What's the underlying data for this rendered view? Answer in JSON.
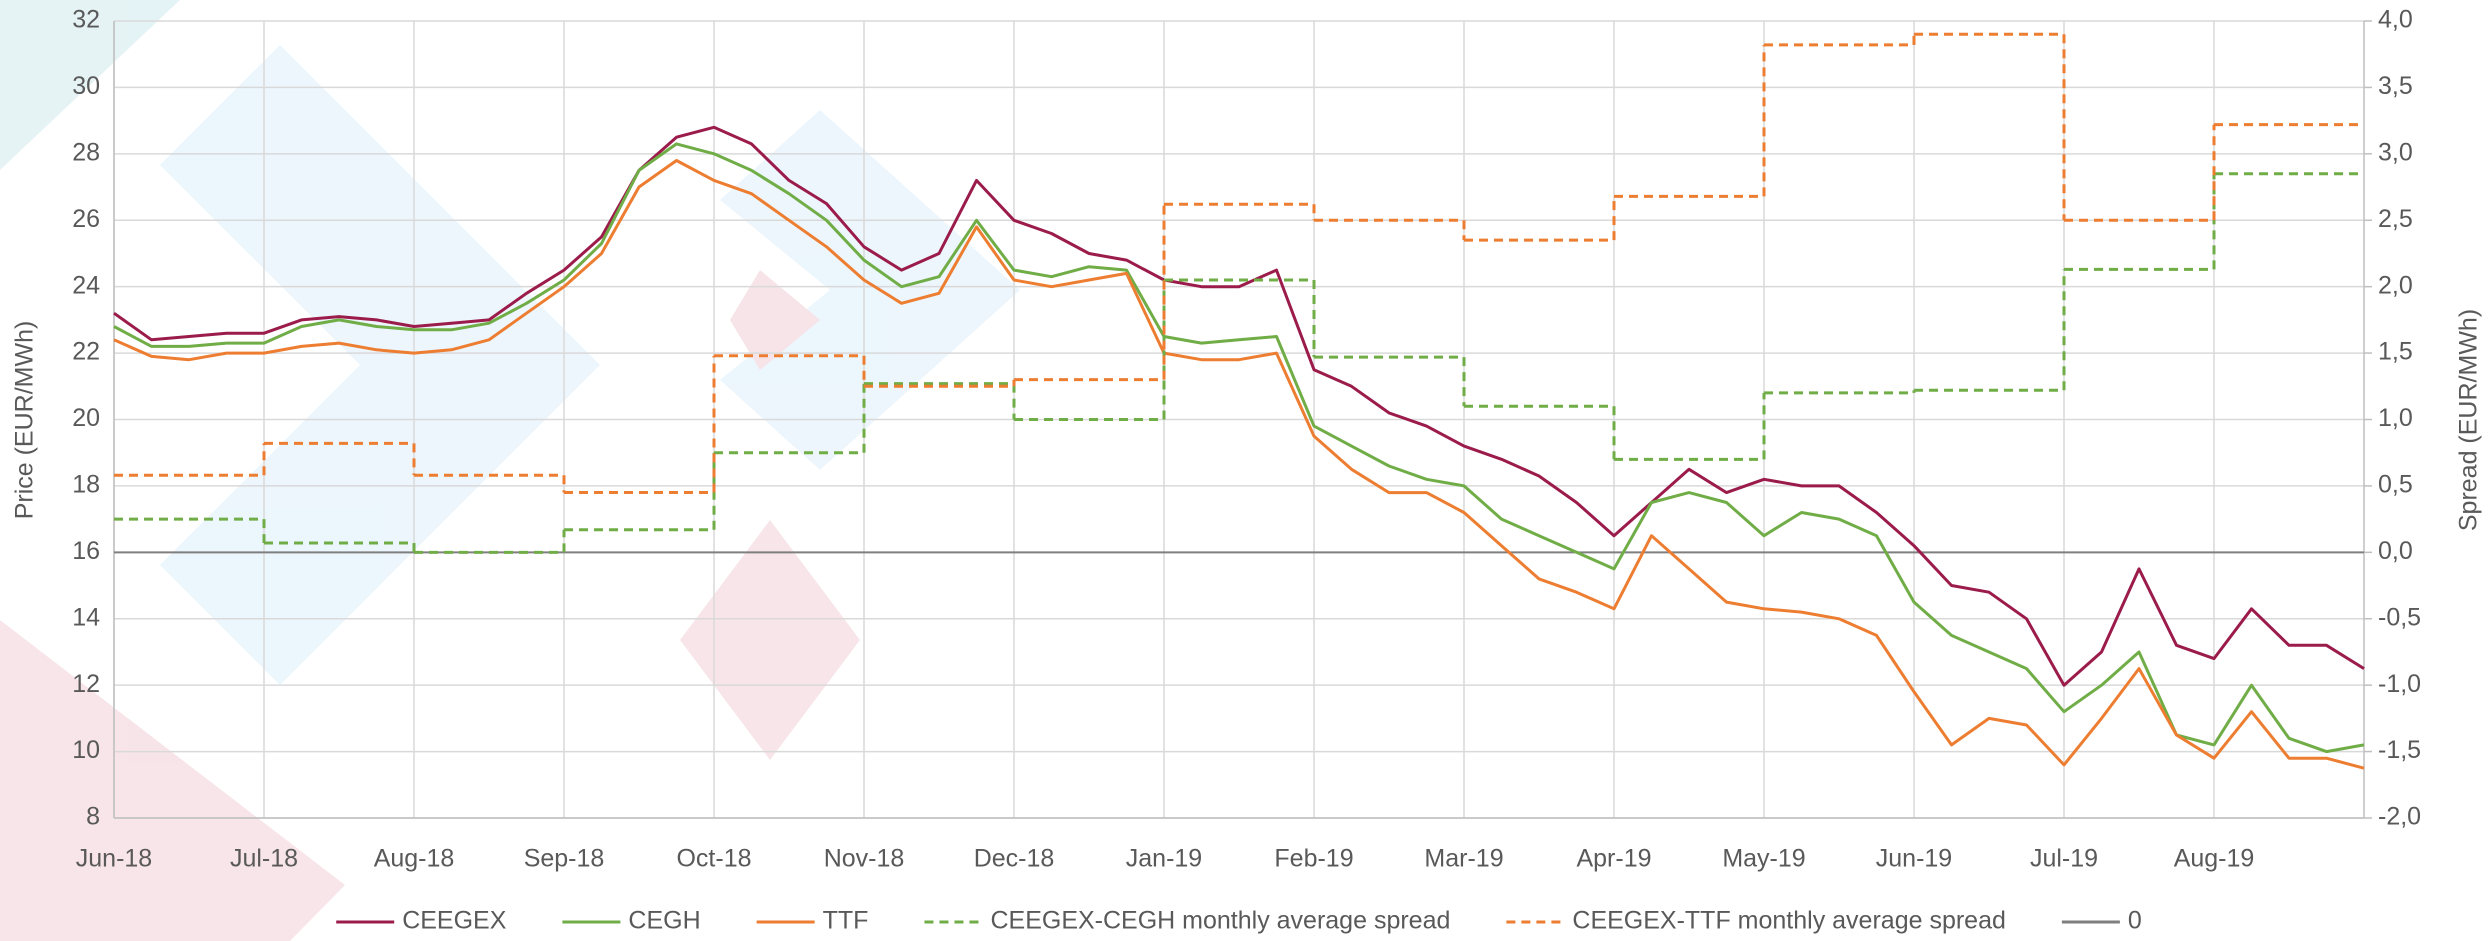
{
  "chart_data": {
    "type": "line",
    "y_label": "Price (EUR/MWh)",
    "y2_label": "Spread (EUR/MWh)",
    "xlim": [
      0,
      15
    ],
    "xticks": [
      {
        "value": 0,
        "label": "Jun-18"
      },
      {
        "value": 1,
        "label": "Jul-18"
      },
      {
        "value": 2,
        "label": "Aug-18"
      },
      {
        "value": 3,
        "label": "Sep-18"
      },
      {
        "value": 4,
        "label": "Oct-18"
      },
      {
        "value": 5,
        "label": "Nov-18"
      },
      {
        "value": 6,
        "label": "Dec-18"
      },
      {
        "value": 7,
        "label": "Jan-19"
      },
      {
        "value": 8,
        "label": "Feb-19"
      },
      {
        "value": 9,
        "label": "Mar-19"
      },
      {
        "value": 10,
        "label": "Apr-19"
      },
      {
        "value": 11,
        "label": "May-19"
      },
      {
        "value": 12,
        "label": "Jun-19"
      },
      {
        "value": 13,
        "label": "Jul-19"
      },
      {
        "value": 14,
        "label": "Aug-19"
      }
    ],
    "ylim": [
      8,
      32
    ],
    "yticks": [
      8,
      10,
      12,
      14,
      16,
      18,
      20,
      22,
      24,
      26,
      28,
      30,
      32
    ],
    "y2lim": [
      -2,
      4
    ],
    "y2ticks": [
      {
        "value": -2,
        "label": "-2,0"
      },
      {
        "value": -1.5,
        "label": "-1,5"
      },
      {
        "value": -1,
        "label": "-1,0"
      },
      {
        "value": -0.5,
        "label": "-0,5"
      },
      {
        "value": 0,
        "label": "0,0"
      },
      {
        "value": 0.5,
        "label": "0,5"
      },
      {
        "value": 1,
        "label": "1,0"
      },
      {
        "value": 1.5,
        "label": "1,5"
      },
      {
        "value": 2,
        "label": "2,0"
      },
      {
        "value": 2.5,
        "label": "2,5"
      },
      {
        "value": 3,
        "label": "3,0"
      },
      {
        "value": 3.5,
        "label": "3,5"
      },
      {
        "value": 4,
        "label": "4,0"
      }
    ],
    "grid": true,
    "legend": "bottom",
    "x": [
      0,
      0.25,
      0.5,
      0.75,
      1,
      1.25,
      1.5,
      1.75,
      2,
      2.25,
      2.5,
      2.75,
      3,
      3.25,
      3.5,
      3.75,
      4,
      4.25,
      4.5,
      4.75,
      5,
      5.25,
      5.5,
      5.75,
      6,
      6.25,
      6.5,
      6.75,
      7,
      7.25,
      7.5,
      7.75,
      8,
      8.25,
      8.5,
      8.75,
      9,
      9.25,
      9.5,
      9.75,
      10,
      10.25,
      10.5,
      10.75,
      11,
      11.25,
      11.5,
      11.75,
      12,
      12.25,
      12.5,
      12.75,
      13,
      13.25,
      13.5,
      13.75,
      14,
      14.25,
      14.5,
      14.75,
      15
    ],
    "series": [
      {
        "name": "CEEGEX",
        "color": "#9b1b4b",
        "values": [
          23.2,
          22.4,
          22.5,
          22.6,
          22.6,
          23.0,
          23.1,
          23.0,
          22.8,
          22.9,
          23.0,
          23.8,
          24.5,
          25.5,
          27.5,
          28.5,
          28.8,
          28.3,
          27.2,
          26.5,
          25.2,
          24.5,
          25.0,
          27.2,
          26.0,
          25.6,
          25.0,
          24.8,
          24.2,
          24.0,
          24.0,
          24.5,
          21.5,
          21.0,
          20.2,
          19.8,
          19.2,
          18.8,
          18.3,
          17.5,
          16.5,
          17.5,
          18.5,
          17.8,
          18.2,
          18.0,
          18.0,
          17.2,
          16.2,
          15.0,
          14.8,
          14.0,
          12.0,
          13.0,
          15.5,
          13.2,
          12.8,
          14.3,
          13.2,
          13.2,
          12.5
        ]
      },
      {
        "name": "CEGH",
        "color": "#70ad47",
        "values": [
          22.8,
          22.2,
          22.2,
          22.3,
          22.3,
          22.8,
          23.0,
          22.8,
          22.7,
          22.7,
          22.9,
          23.5,
          24.2,
          25.3,
          27.5,
          28.3,
          28.0,
          27.5,
          26.8,
          26.0,
          24.8,
          24.0,
          24.3,
          26.0,
          24.5,
          24.3,
          24.6,
          24.5,
          22.5,
          22.3,
          22.4,
          22.5,
          19.8,
          19.2,
          18.6,
          18.2,
          18.0,
          17.0,
          16.5,
          16.0,
          15.5,
          17.5,
          17.8,
          17.5,
          16.5,
          17.2,
          17.0,
          16.5,
          14.5,
          13.5,
          13.0,
          12.5,
          11.2,
          12.0,
          13.0,
          10.5,
          10.2,
          12.0,
          10.4,
          10.0,
          10.2
        ]
      },
      {
        "name": "TTF",
        "color": "#ed7d31",
        "values": [
          22.4,
          21.9,
          21.8,
          22.0,
          22.0,
          22.2,
          22.3,
          22.1,
          22.0,
          22.1,
          22.4,
          23.2,
          24.0,
          25.0,
          27.0,
          27.8,
          27.2,
          26.8,
          26.0,
          25.2,
          24.2,
          23.5,
          23.8,
          25.8,
          24.2,
          24.0,
          24.2,
          24.4,
          22.0,
          21.8,
          21.8,
          22.0,
          19.5,
          18.5,
          17.8,
          17.8,
          17.2,
          16.2,
          15.2,
          14.8,
          14.3,
          16.5,
          15.5,
          14.5,
          14.3,
          14.2,
          14.0,
          13.5,
          11.8,
          10.2,
          11.0,
          10.8,
          9.6,
          11.0,
          12.5,
          10.5,
          9.8,
          11.2,
          9.8,
          9.8,
          9.5
        ]
      },
      {
        "name": "CEEGEX-CEGH monthly average spread",
        "color": "#70ad47",
        "axis": "y2",
        "dashed": true,
        "x": [
          0,
          1,
          2,
          3,
          4,
          5,
          6,
          7,
          8,
          9,
          10,
          11,
          12,
          13,
          14
        ],
        "values": [
          0.25,
          0.07,
          0.0,
          0.17,
          0.75,
          1.27,
          1.0,
          2.05,
          1.47,
          1.1,
          0.7,
          1.2,
          1.22,
          2.13,
          2.85
        ]
      },
      {
        "name": "CEEGEX-TTF monthly average spread",
        "color": "#ed7d31",
        "axis": "y2",
        "dashed": true,
        "x": [
          0,
          1,
          2,
          3,
          4,
          5,
          6,
          7,
          8,
          9,
          10,
          11,
          12,
          13,
          14
        ],
        "values": [
          0.58,
          0.82,
          0.58,
          0.45,
          1.48,
          1.25,
          1.3,
          2.62,
          2.5,
          2.35,
          2.68,
          3.82,
          3.9,
          2.5,
          3.22
        ]
      }
    ],
    "reference_lines": [
      {
        "name": "0",
        "value": 0,
        "axis": "y2",
        "color": "#7f7f7f"
      }
    ]
  }
}
